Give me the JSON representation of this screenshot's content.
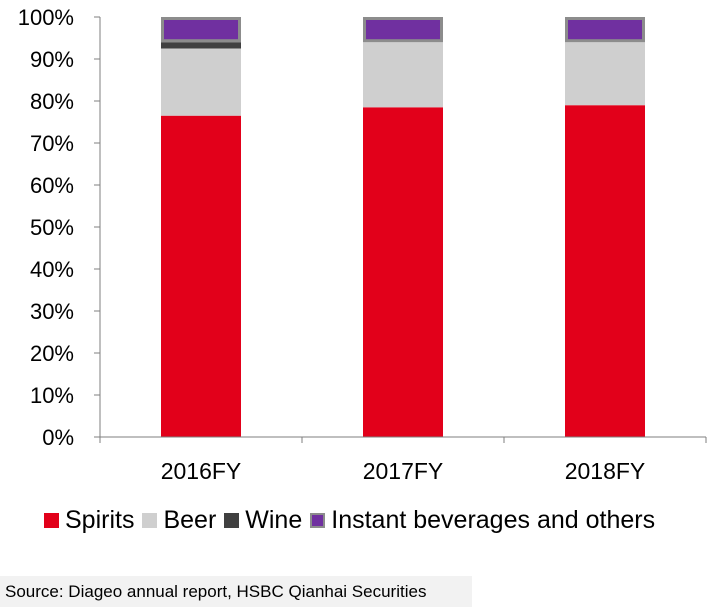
{
  "chart_data": {
    "type": "bar",
    "stacked": true,
    "categories": [
      "2016FY",
      "2017FY",
      "2018FY"
    ],
    "series": [
      {
        "name": "Spirits",
        "color": "#e2001a",
        "values": [
          76.5,
          78.5,
          79.0
        ]
      },
      {
        "name": "Beer",
        "color": "#cfcfcf",
        "values": [
          16.0,
          15.5,
          15.0
        ]
      },
      {
        "name": "Wine",
        "color": "#404040",
        "values": [
          1.5,
          0.0,
          0.0
        ]
      },
      {
        "name": "Instant beverages and others",
        "color": "#7030a0",
        "values": [
          6.0,
          6.0,
          6.0
        ]
      }
    ],
    "ylim": [
      0,
      100
    ],
    "yticks": [
      "0%",
      "10%",
      "20%",
      "30%",
      "40%",
      "50%",
      "60%",
      "70%",
      "80%",
      "90%",
      "100%"
    ],
    "legend_position": "bottom",
    "grid": false
  },
  "source": "Source: Diageo annual report, HSBC Qianhai Securities"
}
